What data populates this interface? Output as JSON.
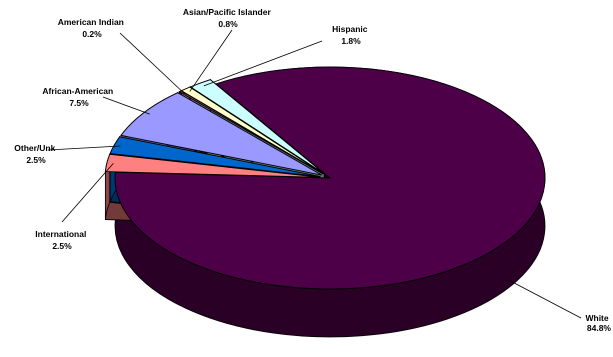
{
  "chart_data": {
    "type": "pie",
    "style": "3d-exploded",
    "legend": "none",
    "slices": [
      {
        "label": "White",
        "value": 84.8,
        "value_label": "84.8%",
        "color": "#4d0047"
      },
      {
        "label": "International",
        "value": 2.5,
        "value_label": "2.5%",
        "color": "#ff8080"
      },
      {
        "label": "Other/Unk",
        "value": 2.5,
        "value_label": "2.5%",
        "color": "#0066cc"
      },
      {
        "label": "African-American",
        "value": 7.5,
        "value_label": "7.5%",
        "color": "#9999ff"
      },
      {
        "label": "American Indian",
        "value": 0.2,
        "value_label": "0.2%",
        "color": "#993366"
      },
      {
        "label": "Asian/Pacific Islander",
        "value": 0.8,
        "value_label": "0.8%",
        "color": "#ffffcc"
      },
      {
        "label": "Hispanic",
        "value": 1.8,
        "value_label": "1.8%",
        "color": "#ccffff"
      }
    ]
  }
}
